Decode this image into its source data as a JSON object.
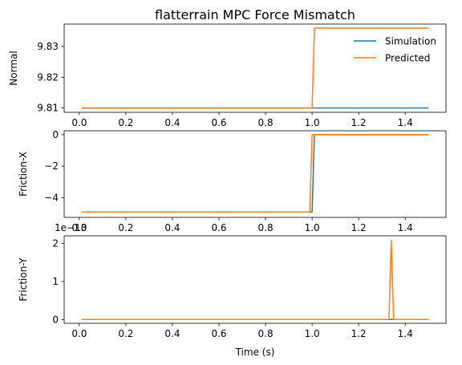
{
  "figure": {
    "title": "flatterrain MPC Force Mismatch",
    "xlabel": "Time (s)"
  },
  "colors": {
    "simulation": "#1f77b4",
    "predicted": "#ff7f0e",
    "axes": "#000000"
  },
  "chart_data": [
    {
      "type": "line",
      "ylabel": "Normal",
      "xlim": [
        -0.065,
        1.575
      ],
      "ylim": [
        9.8086,
        9.8373
      ],
      "xticks": [
        0.0,
        0.2,
        0.4,
        0.6,
        0.8,
        1.0,
        1.2,
        1.4
      ],
      "xtick_labels": [
        "0.0",
        "0.2",
        "0.4",
        "0.6",
        "0.8",
        "1.0",
        "1.2",
        "1.4"
      ],
      "yticks": [
        9.81,
        9.82,
        9.83
      ],
      "ytick_labels": [
        "9.81",
        "9.82",
        "9.83"
      ],
      "legend": "top-right",
      "series": [
        {
          "name": "Simulation",
          "color_key": "simulation",
          "x": [
            0.01,
            1.0,
            1.02,
            1.5
          ],
          "y": [
            9.81,
            9.81,
            9.81,
            9.81
          ]
        },
        {
          "name": "Predicted",
          "color_key": "predicted",
          "x": [
            0.01,
            1.0,
            1.01,
            1.5
          ],
          "y": [
            9.81,
            9.81,
            9.836,
            9.836
          ]
        }
      ]
    },
    {
      "type": "line",
      "ylabel": "Friction-X",
      "xlim": [
        -0.065,
        1.575
      ],
      "ylim": [
        -5.25,
        0.25
      ],
      "xticks": [
        0.0,
        0.2,
        0.4,
        0.6,
        0.8,
        1.0,
        1.2,
        1.4
      ],
      "xtick_labels": [
        "0.0",
        "0.2",
        "0.4",
        "0.6",
        "0.8",
        "1.0",
        "1.2",
        "1.4"
      ],
      "yticks": [
        -4,
        -2,
        0
      ],
      "ytick_labels": [
        "−4",
        "−2",
        "0"
      ],
      "series": [
        {
          "name": "Simulation",
          "color_key": "simulation",
          "x": [
            0.01,
            1.0,
            1.01,
            1.5
          ],
          "y": [
            -4.905,
            -4.905,
            0,
            0
          ]
        },
        {
          "name": "Predicted",
          "color_key": "predicted",
          "x": [
            0.01,
            0.99,
            1.0,
            1.5
          ],
          "y": [
            -4.905,
            -4.905,
            0,
            0
          ]
        }
      ]
    },
    {
      "type": "line",
      "ylabel": "Friction-Y",
      "offset_text": "1e−13",
      "xlabel": "Time (s)",
      "xlim": [
        -0.065,
        1.575
      ],
      "ylim": [
        -0.1,
        2.2
      ],
      "xticks": [
        0.0,
        0.2,
        0.4,
        0.6,
        0.8,
        1.0,
        1.2,
        1.4
      ],
      "xtick_labels": [
        "0.0",
        "0.2",
        "0.4",
        "0.6",
        "0.8",
        "1.0",
        "1.2",
        "1.4"
      ],
      "yticks": [
        0,
        1,
        2
      ],
      "ytick_labels": [
        "0",
        "1",
        "2"
      ],
      "series": [
        {
          "name": "Simulation",
          "color_key": "simulation",
          "x": [
            0.01,
            1.5
          ],
          "y": [
            0,
            0
          ]
        },
        {
          "name": "Predicted",
          "color_key": "predicted",
          "x": [
            0.01,
            1.33,
            1.34,
            1.35,
            1.5
          ],
          "y": [
            0,
            0,
            2.08,
            0,
            0
          ]
        }
      ]
    }
  ]
}
